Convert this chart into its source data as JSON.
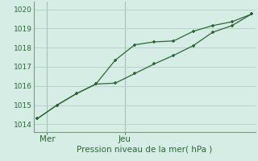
{
  "title": "Pression niveau de la mer( hPa )",
  "bg_color": "#d5ede5",
  "plot_bg_color": "#d5ede5",
  "grid_color": "#b0cfc5",
  "line_color": "#2d6637",
  "vline_color": "#7a9a8a",
  "ylim": [
    1013.6,
    1020.4
  ],
  "yticks": [
    1014,
    1015,
    1016,
    1017,
    1018,
    1019,
    1020
  ],
  "ylabel_fontsize": 6.5,
  "xlabel_fontsize": 7.5,
  "series1_x": [
    0,
    1,
    2,
    3,
    4,
    5,
    6,
    7,
    8,
    9,
    10,
    11
  ],
  "series1_y": [
    1014.3,
    1015.0,
    1015.6,
    1016.1,
    1016.15,
    1016.65,
    1017.15,
    1017.6,
    1018.1,
    1018.8,
    1019.15,
    1019.75
  ],
  "series2_x": [
    0,
    1,
    2,
    3,
    4,
    5,
    6,
    7,
    8,
    9,
    10,
    11
  ],
  "series2_y": [
    1014.3,
    1015.0,
    1015.6,
    1016.1,
    1017.35,
    1018.15,
    1018.3,
    1018.35,
    1018.85,
    1019.15,
    1019.35,
    1019.75
  ],
  "xlim": [
    -0.2,
    11.2
  ],
  "xtick_positions": [
    0.5,
    4.5
  ],
  "xtick_labels": [
    "Mer",
    "Jeu"
  ],
  "vline_positions": [
    0.5,
    4.5
  ]
}
